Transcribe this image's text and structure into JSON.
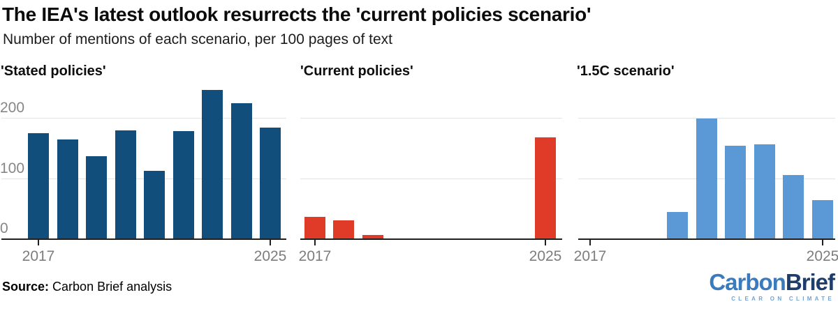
{
  "header": {
    "title": "The IEA's latest outlook resurrects the 'current policies scenario'",
    "subtitle": "Number of mentions of each scenario, per 100 pages of text"
  },
  "footer": {
    "source_label": "Source:",
    "source_text": "Carbon Brief analysis",
    "logo": {
      "part1": "Carbon",
      "part2": "Brief",
      "tagline": "CLEAR ON CLIMATE"
    }
  },
  "colors": {
    "stated_bar": "#124e7c",
    "current_bar": "#e03a28",
    "scenario_bar": "#5b98d6",
    "axis": "#1f1f1f",
    "gridline": "#e3e3e3",
    "x_tick_label": "#7d7d7d",
    "y_tick_label": "#868686",
    "logo_carbon": "#3a7bbd",
    "logo_brief": "#1e3d6c",
    "logo_tagline": "#6fa3d8"
  },
  "chart_data": [
    {
      "type": "bar",
      "title": "'Stated policies'",
      "categories": [
        "2017",
        "2018",
        "2019",
        "2020",
        "2021",
        "2022",
        "2023",
        "2024",
        "2025"
      ],
      "values": [
        176,
        165,
        138,
        180,
        113,
        179,
        247,
        225,
        185
      ],
      "color": "#124e7c",
      "ylim": [
        0,
        250
      ],
      "yticks": [
        0,
        100,
        200
      ],
      "show_y_labels": true,
      "x_tick_labels": [
        "2017",
        "2025"
      ],
      "grid": true,
      "legend": "none"
    },
    {
      "type": "bar",
      "title": "'Current policies'",
      "categories": [
        "2017",
        "2018",
        "2019",
        "2020",
        "2021",
        "2022",
        "2023",
        "2024",
        "2025"
      ],
      "values": [
        37,
        31,
        7,
        0,
        0,
        0,
        0,
        0,
        169
      ],
      "color": "#e03a28",
      "ylim": [
        0,
        250
      ],
      "yticks": [
        0,
        100,
        200
      ],
      "show_y_labels": false,
      "x_tick_labels": [
        "2017",
        "2025"
      ],
      "grid": true,
      "legend": "none"
    },
    {
      "type": "bar",
      "title": "'1.5C scenario'",
      "categories": [
        "2017",
        "2018",
        "2019",
        "2020",
        "2021",
        "2022",
        "2023",
        "2024",
        "2025"
      ],
      "values": [
        0,
        0,
        0,
        45,
        200,
        155,
        157,
        106,
        65
      ],
      "color": "#5b98d6",
      "ylim": [
        0,
        250
      ],
      "yticks": [
        0,
        100,
        200
      ],
      "show_y_labels": false,
      "x_tick_labels": [
        "2017",
        "2025"
      ],
      "grid": true,
      "legend": "none"
    }
  ]
}
